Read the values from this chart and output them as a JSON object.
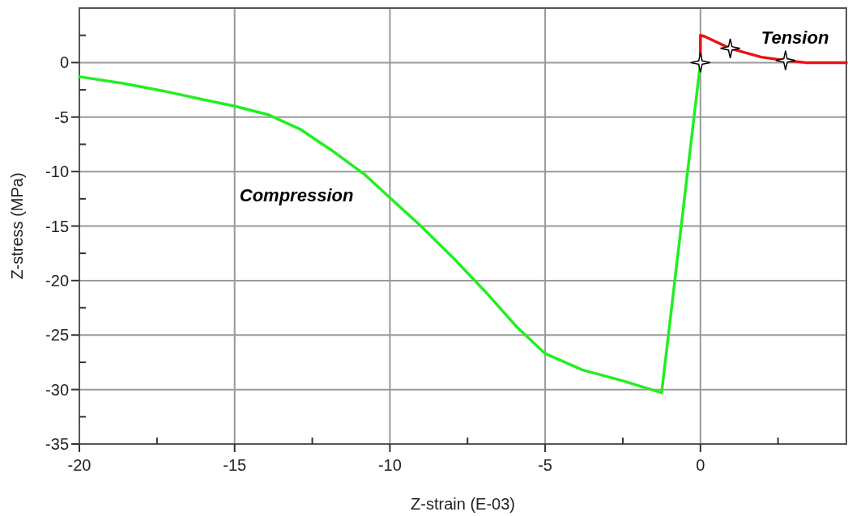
{
  "chart_data": {
    "type": "line",
    "xlabel": "Z-strain (E-03)",
    "ylabel": "Z-stress (MPa)",
    "xlim": [
      -20,
      4.7
    ],
    "ylim": [
      -35,
      5
    ],
    "xticks": [
      -20,
      {
        "value": -17.5,
        "label": null
      },
      -15,
      {
        "value": -12.5,
        "label": null
      },
      -10,
      {
        "value": -7.5,
        "label": null
      },
      -5,
      {
        "value": -2.5,
        "label": null
      },
      0,
      {
        "value": 2.5,
        "label": null
      }
    ],
    "yticks": [
      -35,
      {
        "value": -32.5,
        "label": null
      },
      -30,
      {
        "value": -27.5,
        "label": null
      },
      -25,
      {
        "value": -22.5,
        "label": null
      },
      -20,
      {
        "value": -17.5,
        "label": null
      },
      -15,
      {
        "value": -12.5,
        "label": null
      },
      -10,
      {
        "value": -7.5,
        "label": null
      },
      -5,
      {
        "value": -2.5,
        "label": null
      },
      0,
      {
        "value": 2.5,
        "label": null
      }
    ],
    "grid": true,
    "line_style": "solid",
    "marker": "none",
    "series": [
      {
        "name": "Compression",
        "color": "#22ee22",
        "x": [
          -20,
          -18.6,
          -17.3,
          -16,
          -15,
          -13.9,
          -12.9,
          -11.9,
          -10.8,
          -10,
          -9,
          -7.9,
          -6.9,
          -5.9,
          -5,
          -3.8,
          -2.5,
          -1.25,
          0
        ],
        "values": [
          -1.3,
          -1.9,
          -2.6,
          -3.4,
          -4,
          -4.8,
          -6.1,
          -8,
          -10.3,
          -12.4,
          -15,
          -18.1,
          -21.1,
          -24.3,
          -26.7,
          -28.2,
          -29.2,
          -30.3,
          0
        ]
      },
      {
        "name": "Tension",
        "color": "#ee1111",
        "x": [
          0,
          0,
          0.13,
          0.96,
          1.96,
          2.74,
          3.4,
          4.7
        ],
        "values": [
          0,
          2.5,
          2.4,
          1.3,
          0.5,
          0.2,
          0,
          0
        ]
      },
      {
        "type": "scatter",
        "marker": "star",
        "color": "#ffffff",
        "x": [
          0,
          0.96,
          2.74
        ],
        "values": [
          0,
          1.3,
          0.2
        ]
      }
    ]
  }
}
